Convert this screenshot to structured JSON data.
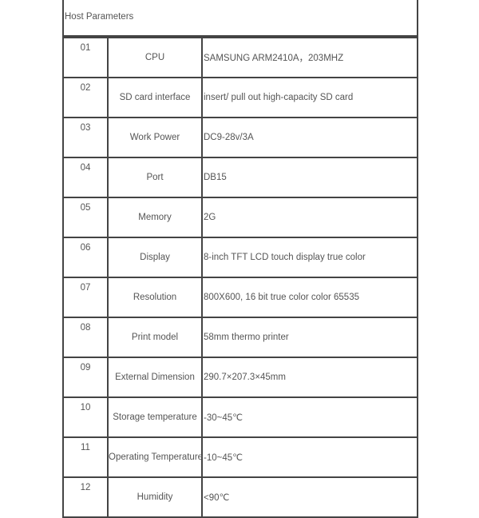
{
  "title": "Host Parameters",
  "rows": [
    {
      "num": "01",
      "name": "CPU",
      "value": "SAMSUNG ARM2410A，203MHZ"
    },
    {
      "num": "02",
      "name": "SD card interface",
      "value": "insert/ pull out high-capacity SD card"
    },
    {
      "num": "03",
      "name": "Work Power",
      "value": "DC9-28v/3A"
    },
    {
      "num": "04",
      "name": "Port",
      "value": "DB15"
    },
    {
      "num": "05",
      "name": "Memory",
      "value": "2G"
    },
    {
      "num": "06",
      "name": "Display",
      "value": "8-inch TFT   LCD touch display true color"
    },
    {
      "num": "07",
      "name": "Resolution",
      "value": "800X600, 16 bit true color  color 65535"
    },
    {
      "num": "08",
      "name": "Print model",
      "value": "58mm thermo printer"
    },
    {
      "num": "09",
      "name": "External Dimension",
      "value": "290.7×207.3×45mm"
    },
    {
      "num": "10",
      "name": "Storage temperature",
      "value": "-30~45℃"
    },
    {
      "num": "11",
      "name": "Operating Temperature",
      "value": "-10~45℃"
    },
    {
      "num": "12",
      "name": "Humidity",
      "value": "<90℃"
    }
  ]
}
